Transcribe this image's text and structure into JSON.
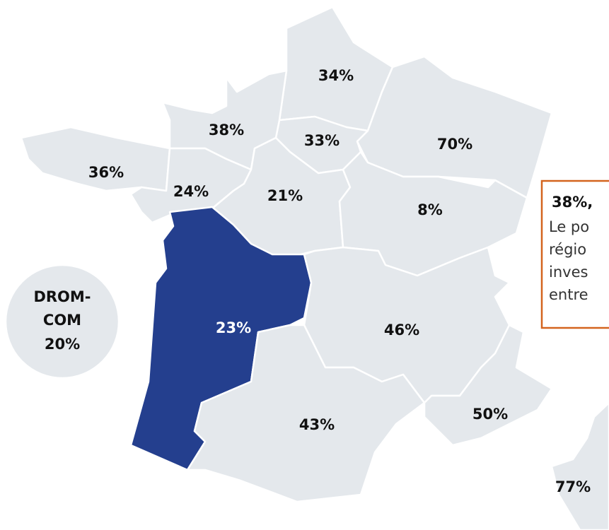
{
  "regions": [
    {
      "label": "34%"
    },
    {
      "label": "70%"
    },
    {
      "label": "33%"
    },
    {
      "label": "38%"
    },
    {
      "label": "36%"
    },
    {
      "label": "24%"
    },
    {
      "label": "21%"
    },
    {
      "label": "8%"
    },
    {
      "label": "23%"
    },
    {
      "label": "46%"
    },
    {
      "label": "43%"
    },
    {
      "label": "50%"
    },
    {
      "label": "77%"
    }
  ],
  "drom_com": {
    "lines": [
      "DROM-",
      "COM",
      "20%"
    ]
  },
  "callout": {
    "title": "38%,",
    "lines": [
      "Le po",
      "régio",
      "inves",
      "entre"
    ]
  }
}
